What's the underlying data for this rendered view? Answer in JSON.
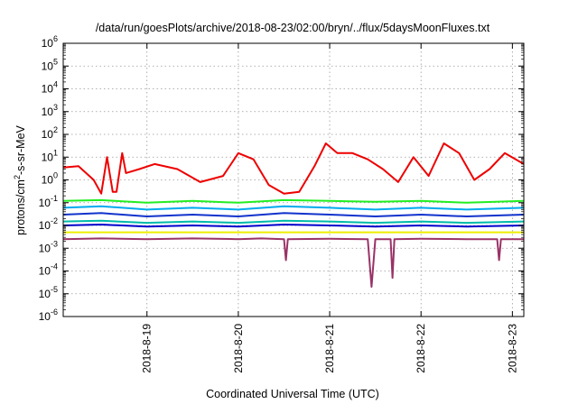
{
  "chart_data": {
    "type": "line",
    "title": "/data/run/goesPlots/archive/2018-08-23/02:00/bryn/../flux/5daysMoonFluxes.txt",
    "xlabel": "Coordinated Universal Time (UTC)",
    "ylabel": "protons/cm2-s-sr-MeV",
    "ylabel_parts": {
      "main": "protons/cm",
      "sup": "2",
      "rest": "-s-sr-MeV"
    },
    "y_scale": "log",
    "ylim_exponents": [
      -6,
      6
    ],
    "y_tick_exponents": [
      -6,
      -5,
      -4,
      -3,
      -2,
      -1,
      0,
      1,
      2,
      3,
      4,
      5,
      6
    ],
    "y_tick_base": "10",
    "x_start": "2018-08-18T02:00",
    "x_end": "2018-08-23T03:00",
    "x_ticks": [
      {
        "label": "2018-8-19",
        "date": "2018-08-19T00:00"
      },
      {
        "label": "2018-8-20",
        "date": "2018-08-20T00:00"
      },
      {
        "label": "2018-8-21",
        "date": "2018-08-21T00:00"
      },
      {
        "label": "2018-8-22",
        "date": "2018-08-22T00:00"
      },
      {
        "label": "2018-8-23",
        "date": "2018-08-23T00:00"
      }
    ],
    "grid": true,
    "series_colors": [
      "#ee0000",
      "#22ee22",
      "#00aaee",
      "#1133cc",
      "#00bbaa",
      "#0000cc",
      "#eeee00",
      "#993366"
    ],
    "series": [
      {
        "color": "#ee0000",
        "x": [
          "2018-08-18T02:00",
          "2018-08-18T06:00",
          "2018-08-18T10:00",
          "2018-08-18T12:00",
          "2018-08-18T13:30",
          "2018-08-18T15:00",
          "2018-08-18T16:00",
          "2018-08-18T17:30",
          "2018-08-18T18:30",
          "2018-08-18T22:00",
          "2018-08-19T02:00",
          "2018-08-19T08:00",
          "2018-08-19T14:00",
          "2018-08-19T20:00",
          "2018-08-20T00:00",
          "2018-08-20T04:00",
          "2018-08-20T08:00",
          "2018-08-20T12:00",
          "2018-08-20T16:00",
          "2018-08-20T20:00",
          "2018-08-20T23:00",
          "2018-08-21T02:00",
          "2018-08-21T06:00",
          "2018-08-21T10:00",
          "2018-08-21T14:00",
          "2018-08-21T18:00",
          "2018-08-21T22:00",
          "2018-08-22T02:00",
          "2018-08-22T06:00",
          "2018-08-22T10:00",
          "2018-08-22T14:00",
          "2018-08-22T18:00",
          "2018-08-22T22:00",
          "2018-08-23T03:00"
        ],
        "y": [
          3.5,
          4,
          1.0,
          0.25,
          10,
          0.3,
          0.3,
          15,
          2,
          3,
          5,
          3,
          0.8,
          1.5,
          15,
          8,
          0.6,
          0.25,
          0.3,
          4,
          40,
          15,
          15,
          8,
          3,
          0.8,
          10,
          1.5,
          40,
          15,
          1.0,
          3,
          15,
          5
        ]
      },
      {
        "color": "#22ee22",
        "x": [
          "2018-08-18T02:00",
          "2018-08-18T12:00",
          "2018-08-19T00:00",
          "2018-08-19T12:00",
          "2018-08-20T00:00",
          "2018-08-20T12:00",
          "2018-08-21T00:00",
          "2018-08-21T12:00",
          "2018-08-22T00:00",
          "2018-08-22T12:00",
          "2018-08-23T03:00"
        ],
        "y": [
          0.12,
          0.13,
          0.1,
          0.12,
          0.1,
          0.13,
          0.12,
          0.11,
          0.12,
          0.1,
          0.12
        ]
      },
      {
        "color": "#00aaee",
        "x": [
          "2018-08-18T02:00",
          "2018-08-18T12:00",
          "2018-08-19T00:00",
          "2018-08-19T12:00",
          "2018-08-20T00:00",
          "2018-08-20T12:00",
          "2018-08-21T00:00",
          "2018-08-21T12:00",
          "2018-08-22T00:00",
          "2018-08-22T12:00",
          "2018-08-23T03:00"
        ],
        "y": [
          0.06,
          0.07,
          0.05,
          0.06,
          0.05,
          0.07,
          0.06,
          0.05,
          0.06,
          0.05,
          0.06
        ]
      },
      {
        "color": "#1133cc",
        "x": [
          "2018-08-18T02:00",
          "2018-08-18T12:00",
          "2018-08-19T00:00",
          "2018-08-19T12:00",
          "2018-08-20T00:00",
          "2018-08-20T12:00",
          "2018-08-21T00:00",
          "2018-08-21T12:00",
          "2018-08-22T00:00",
          "2018-08-22T12:00",
          "2018-08-23T03:00"
        ],
        "y": [
          0.03,
          0.035,
          0.025,
          0.03,
          0.025,
          0.035,
          0.03,
          0.025,
          0.03,
          0.025,
          0.03
        ]
      },
      {
        "color": "#00bbaa",
        "x": [
          "2018-08-18T02:00",
          "2018-08-18T12:00",
          "2018-08-19T00:00",
          "2018-08-19T12:00",
          "2018-08-20T00:00",
          "2018-08-20T12:00",
          "2018-08-21T00:00",
          "2018-08-21T12:00",
          "2018-08-22T00:00",
          "2018-08-22T12:00",
          "2018-08-23T03:00"
        ],
        "y": [
          0.015,
          0.016,
          0.013,
          0.015,
          0.013,
          0.016,
          0.015,
          0.013,
          0.015,
          0.013,
          0.015
        ]
      },
      {
        "color": "#0000cc",
        "x": [
          "2018-08-18T02:00",
          "2018-08-18T12:00",
          "2018-08-19T00:00",
          "2018-08-19T12:00",
          "2018-08-20T00:00",
          "2018-08-20T12:00",
          "2018-08-21T00:00",
          "2018-08-21T12:00",
          "2018-08-22T00:00",
          "2018-08-22T12:00",
          "2018-08-23T03:00"
        ],
        "y": [
          0.01,
          0.011,
          0.009,
          0.01,
          0.009,
          0.011,
          0.01,
          0.009,
          0.01,
          0.009,
          0.01
        ]
      },
      {
        "color": "#eeee00",
        "x": [
          "2018-08-18T02:00",
          "2018-08-18T12:00",
          "2018-08-19T00:00",
          "2018-08-19T12:00",
          "2018-08-20T00:00",
          "2018-08-20T12:00",
          "2018-08-21T00:00",
          "2018-08-21T12:00",
          "2018-08-22T00:00",
          "2018-08-22T12:00",
          "2018-08-23T03:00"
        ],
        "y": [
          0.005,
          0.005,
          0.005,
          0.005,
          0.005,
          0.005,
          0.005,
          0.005,
          0.005,
          0.005,
          0.005
        ]
      },
      {
        "color": "#993366",
        "x": [
          "2018-08-18T02:00",
          "2018-08-18T12:00",
          "2018-08-19T00:00",
          "2018-08-19T12:00",
          "2018-08-20T00:00",
          "2018-08-20T06:00",
          "2018-08-20T12:00",
          "2018-08-20T12:30",
          "2018-08-20T13:00",
          "2018-08-21T00:00",
          "2018-08-21T10:00",
          "2018-08-21T11:00",
          "2018-08-21T12:00",
          "2018-08-21T16:00",
          "2018-08-21T16:30",
          "2018-08-21T17:00",
          "2018-08-22T00:00",
          "2018-08-22T12:00",
          "2018-08-22T20:00",
          "2018-08-22T20:30",
          "2018-08-22T21:00",
          "2018-08-23T03:00"
        ],
        "y": [
          0.0025,
          0.0027,
          0.0025,
          0.0027,
          0.0025,
          0.0027,
          0.0025,
          0.0003,
          0.0025,
          0.0026,
          0.0025,
          2e-05,
          0.0025,
          0.0025,
          5e-05,
          0.0025,
          0.0026,
          0.0025,
          0.0025,
          0.0003,
          0.0025,
          0.0025
        ]
      }
    ]
  }
}
